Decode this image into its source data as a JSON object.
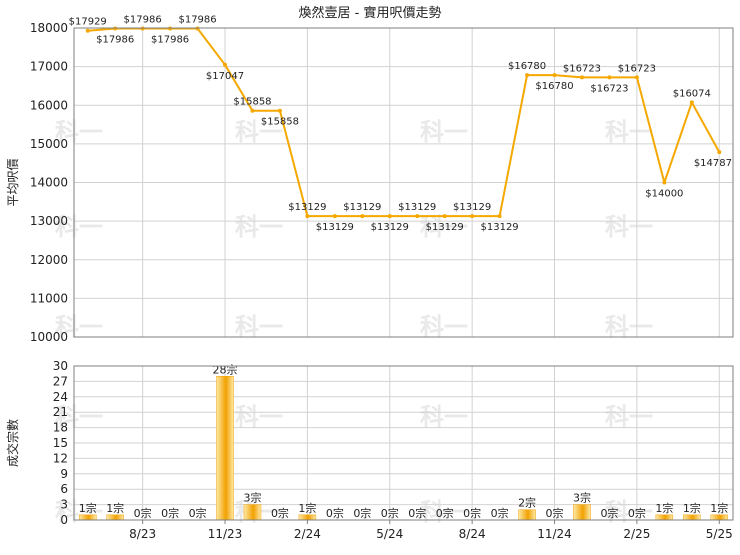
{
  "title": "煥然壹居 - 實用呎價走勢",
  "watermark": "科一",
  "colors": {
    "line": "#f5a800",
    "bar_light": "#fde9a8",
    "bar_dark": "#f2a100",
    "grid": "#d2d2d2",
    "frame": "#7f7f7f"
  },
  "chart_data": [
    {
      "type": "line",
      "title": "煥然壹居 - 實用呎價走勢",
      "ylabel": "平均呎價",
      "ylim": [
        10000,
        18000
      ],
      "yticks": [
        "10000",
        "11000",
        "12000",
        "13000",
        "14000",
        "15000",
        "16000",
        "17000",
        "18000"
      ],
      "xticks": [
        "8/23",
        "11/23",
        "2/24",
        "5/24",
        "8/24",
        "11/24",
        "2/25",
        "5/25"
      ],
      "series": [
        {
          "values": [
            17929,
            17986,
            17986,
            17986,
            17986,
            17047,
            15858,
            15858,
            13129,
            13129,
            13129,
            13129,
            13129,
            13129,
            13129,
            13129,
            16780,
            16780,
            16723,
            16723,
            16723,
            14000,
            16074,
            14787
          ],
          "labels": [
            "$17929",
            "$17986",
            "$17986",
            "$17986",
            "$17986",
            "$17047",
            "$15858",
            "$15858",
            "$13129",
            "$13129",
            "$13129",
            "$13129",
            "$13129",
            "$13129",
            "$13129",
            "$13129",
            "$16780",
            "$16780",
            "$16723",
            "$16723",
            "$16723",
            "$14000",
            "$16074",
            "$14787"
          ]
        }
      ]
    },
    {
      "type": "bar",
      "ylabel": "成交宗數",
      "ylim": [
        0,
        30
      ],
      "yticks": [
        "0",
        "3",
        "6",
        "9",
        "12",
        "15",
        "18",
        "21",
        "24",
        "27",
        "30"
      ],
      "categories": [
        "6/23",
        "7/23",
        "8/23",
        "9/23",
        "10/23",
        "11/23",
        "12/23",
        "1/24",
        "2/24",
        "3/24",
        "4/24",
        "5/24",
        "6/24",
        "7/24",
        "8/24",
        "9/24",
        "10/24",
        "11/24",
        "12/24",
        "1/25",
        "2/25",
        "3/25",
        "4/25",
        "5/25"
      ],
      "xticks": [
        "8/23",
        "11/23",
        "2/24",
        "5/24",
        "8/24",
        "11/24",
        "2/25",
        "5/25"
      ],
      "values": [
        1,
        1,
        0,
        0,
        0,
        28,
        3,
        0,
        1,
        0,
        0,
        0,
        0,
        0,
        0,
        0,
        2,
        0,
        3,
        0,
        0,
        1,
        1,
        1
      ],
      "labels": [
        "1宗",
        "1宗",
        "0宗",
        "0宗",
        "0宗",
        "28宗",
        "3宗",
        "0宗",
        "1宗",
        "0宗",
        "0宗",
        "0宗",
        "0宗",
        "0宗",
        "0宗",
        "0宗",
        "2宗",
        "0宗",
        "3宗",
        "0宗",
        "0宗",
        "1宗",
        "1宗",
        "1宗"
      ]
    }
  ]
}
